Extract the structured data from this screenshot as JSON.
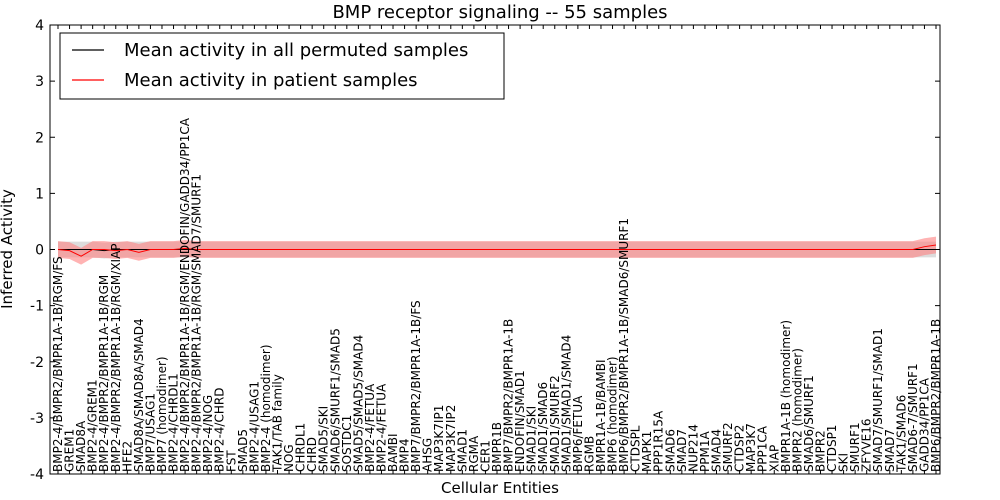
{
  "chart_data": {
    "type": "line",
    "title": "BMP receptor signaling -- 55 samples",
    "xlabel": "Cellular Entities",
    "ylabel": "Inferred Activity",
    "ylim": [
      -4,
      4
    ],
    "yticks": [
      -4,
      -3,
      -2,
      -1,
      0,
      1,
      2,
      3,
      4
    ],
    "grid": false,
    "legend_position": "top-left",
    "categories": [
      "BMP2-4/BMPR2/BMPR1A-1B/RGM/FS",
      "GREM1",
      "SMAD8A",
      "BMP2-4/GREM1",
      "BMP2-4/BMPR2/BMPR1A-1B/RGM",
      "BMP2-4/BMPR2/BMPR1A-1B/RGM/XIAP",
      "HFE2",
      "SMAD8A/SMAD8A/SMAD4",
      "BMP7/USAG1",
      "BMP7 (homodimer)",
      "BMP2-4/CHRDL1",
      "BMP2-4/BMPR2/BMPR1A-1B/RGM/ENDOFIN/GADD34/PP1CA",
      "BMP2-4/BMPR2/BMPR1A-1B/RGM/SMAD7/SMURF1",
      "BMP2-4/NOG",
      "BMP2-4/CHRD",
      "FST",
      "SMAD5",
      "BMP2-4/USAG1",
      "BMP2-4 (homodimer)",
      "TAK1/TAB family",
      "NOG",
      "CHRDL1",
      "CHRD",
      "SMAD5/SKI",
      "SMAD6/SMURF1/SMAD5",
      "SOSTDC1",
      "SMAD5/SMAD5/SMAD4",
      "BMP2-4/FETUA",
      "BMP2-4/FETUA",
      "BAMBI",
      "BMP4",
      "BMP7/BMPR2/BMPR1A-1B/FS",
      "AHSG",
      "MAP3K7IP1",
      "MAP3K7IP2",
      "SMAD1",
      "RGMA",
      "CER1",
      "BMPR1B",
      "BMP7/BMPR2/BMPR1A-1B",
      "ENDOFIN/SMAD1",
      "SMAD1/SKI",
      "SMAD1/SMAD6",
      "SMAD1/SMURF2",
      "SMAD1/SMAD1/SMAD4",
      "BMP6/FETUA",
      "RGMB",
      "BMPR1A-1B/BAMBI",
      "BMP6 (homodimer)",
      "BMP6/BMPR2/BMPR1A-1B/SMAD6/SMURF1",
      "CTDSPL",
      "MAPK1",
      "PPP1R15A",
      "SMAD6",
      "SMAD7",
      "NUP214",
      "PPM1A",
      "SMAD4",
      "SMURF2",
      "CTDSP2",
      "MAP3K7",
      "PPP1CA",
      "XIAP",
      "BMPR1A-1B (homodimer)",
      "BMPR2 (homodimer)",
      "SMAD6/SMURF1",
      "BMPR2",
      "CTDSP1",
      "SKI",
      "SMURF1",
      "ZFYVE16",
      "SMAD7/SMURF1/SMAD1",
      "SMAD7",
      "TAK1/SMAD6",
      "SMAD6-7/SMURF1",
      "GADD34/PP1CA",
      "BMP6/BMPR2/BMPR1A-1B"
    ],
    "series": [
      {
        "name": "Mean activity in all permuted samples",
        "color": "#000000",
        "values": [
          0,
          0,
          0,
          0,
          -0.02,
          0,
          0,
          0,
          0,
          0,
          0,
          0,
          0,
          0,
          0,
          0,
          0,
          0,
          0,
          0,
          0,
          0,
          0,
          0,
          0,
          0,
          0,
          0,
          0,
          0,
          0,
          0,
          0,
          0,
          0,
          0,
          0,
          0,
          0,
          0,
          0,
          0,
          0,
          0,
          0,
          0,
          0,
          0,
          0,
          0,
          0,
          0,
          0,
          0,
          0,
          0,
          0,
          0,
          0,
          0,
          0,
          0,
          0,
          0,
          0,
          0,
          0,
          0,
          0,
          0,
          0,
          0,
          0,
          0,
          0,
          0,
          0
        ],
        "band": 0.14,
        "band_color": "#bfbfbf"
      },
      {
        "name": "Mean activity in patient samples",
        "color": "#ff0000",
        "values": [
          0,
          -0.02,
          -0.12,
          0,
          0,
          -0.02,
          0,
          -0.05,
          0,
          0,
          0,
          0.02,
          0,
          0,
          0,
          0,
          0,
          0,
          0,
          0,
          0,
          0,
          0,
          0,
          0,
          0,
          0,
          0,
          0,
          0,
          0,
          0,
          0,
          0,
          0,
          0,
          0,
          0,
          0,
          0,
          0,
          0,
          0,
          0,
          0,
          0,
          0,
          0,
          0,
          0,
          0,
          0,
          0,
          0,
          0,
          0,
          0,
          0,
          0,
          0,
          0,
          0,
          0,
          0,
          0,
          0,
          0,
          0,
          0,
          0,
          0,
          0,
          0,
          0,
          0,
          0.05,
          0.08
        ],
        "band": 0.15,
        "band_color": "#ff8080"
      }
    ]
  }
}
